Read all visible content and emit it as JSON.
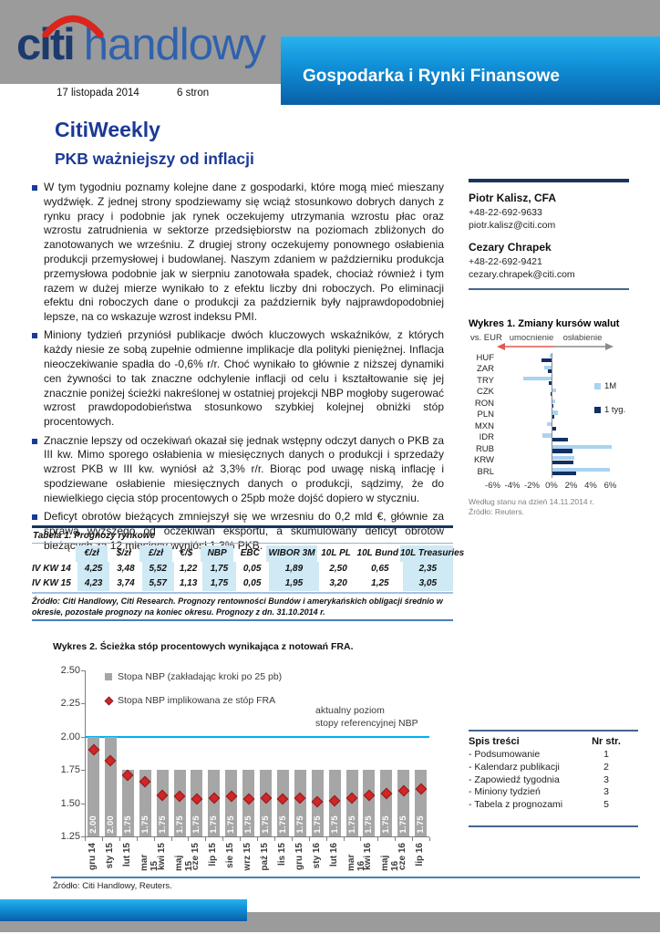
{
  "header": {
    "logo_citi": "citi",
    "logo_handlowy": "handlowy",
    "banner": "Gospodarka i Rynki Finansowe",
    "date": "17 listopada 2014",
    "pages": "6 stron"
  },
  "title": "CitiWeekly",
  "subtitle": "PKB ważniejszy od inflacji",
  "bullets": [
    "W tym tygodniu poznamy kolejne dane z gospodarki, które mogą mieć mieszany wydźwięk. Z jednej strony spodziewamy się wciąż stosunkowo dobrych danych z rynku pracy i podobnie jak rynek oczekujemy utrzymania wzrostu płac oraz wzrostu zatrudnienia w sektorze przedsiębiorstw na poziomach zbliżonych do zanotowanych we wrześniu. Z drugiej strony oczekujemy ponownego osłabienia produkcji przemysłowej i budowlanej. Naszym zdaniem w październiku produkcja przemysłowa podobnie jak w sierpniu zanotowała spadek, chociaż również i tym razem w dużej mierze wynikało to z efektu liczby dni roboczych. Po eliminacji efektu dni roboczych dane o produkcji za październik były najprawdopodobniej lepsze, na co wskazuje wzrost indeksu PMI.",
    "Miniony tydzień przyniósł publikacje dwóch kluczowych wskaźników, z których każdy niesie ze sobą zupełnie odmienne implikacje dla polityki pieniężnej. Inflacja nieoczekiwanie spadła do -0,6% r/r. Choć wynikało to głównie z niższej dynamiki cen żywności to tak znaczne odchylenie inflacji od celu i kształtowanie się jej znacznie poniżej ścieżki nakreślonej w ostatniej projekcji NBP mogłoby sugerować wzrost prawdopodobieństwa stosunkowo szybkiej kolejnej obniżki stóp procentowych.",
    "Znacznie lepszy od oczekiwań okazał się jednak wstępny odczyt danych o PKB za III kw. Mimo sporego osłabienia w miesięcznych danych o produkcji i sprzedaży wzrost PKB w III kw. wyniósł aż 3,3% r/r. Biorąc pod uwagę niską inflację i spodziewane osłabienie miesięcznych danych o produkcji, sądzimy, że do niewielkiego cięcia stóp procentowych o 25pb może dojść dopiero w styczniu.",
    "Deficyt obrotów bieżących zmniejszył się we wrzesniu do 0,2 mld €, głównie za sprawą wyższego od oczekiwań eksportu, a skumulowany deficyt obrotów bieżących za 12 miesięcy wyniósł 1,3% PKB."
  ],
  "contacts": [
    {
      "name": "Piotr Kalisz, CFA",
      "phone": "+48-22-692-9633",
      "email": "piotr.kalisz@citi.com"
    },
    {
      "name": "Cezary Chrapek",
      "phone": "+48-22-692-9421",
      "email": "cezary.chrapek@citi.com"
    }
  ],
  "table1": {
    "title": "Tabela 1. Prognozy rynkowe",
    "columns": [
      "€/zł",
      "$/zł",
      "£/zł",
      "€/$",
      "NBP",
      "EBC",
      "WIBOR 3M",
      "10L PL",
      "10L Bund",
      "10L Treasuries"
    ],
    "shaded_columns": [
      0,
      2,
      4,
      6,
      9
    ],
    "rows": [
      {
        "label": "IV KW 14",
        "values": [
          "4,25",
          "3,48",
          "5,52",
          "1,22",
          "1,75",
          "0,05",
          "1,89",
          "2,50",
          "0,65",
          "2,35"
        ]
      },
      {
        "label": "IV KW 15",
        "values": [
          "4,23",
          "3,74",
          "5,57",
          "1,13",
          "1,75",
          "0,05",
          "1,95",
          "3,20",
          "1,25",
          "3,05"
        ]
      }
    ],
    "source": "Źródło: Citi Handlowy, Citi Research. Prognozy rentowności Bundów i amerykańskich obligacji średnio w okresie, pozostałe prognozy na koniec okresu. Prognozy z dn. 31.10.2014 r."
  },
  "chart_data": [
    {
      "type": "bar",
      "orientation": "horizontal",
      "title": "Wykres 1. Zmiany kursów walut",
      "vs_label": "vs. EUR",
      "left_label": "umocnienie",
      "right_label": "osłabienie",
      "categories": [
        "HUF",
        "ZAR",
        "TRY",
        "CZK",
        "RON",
        "PLN",
        "MXN",
        "IDR",
        "RUB",
        "KRW",
        "BRL"
      ],
      "series": [
        {
          "name": "1M",
          "color": "#a9d3f0",
          "values": [
            -0.2,
            -0.7,
            -2.9,
            0.4,
            0.3,
            0.6,
            -0.5,
            -0.9,
            6.0,
            2.2,
            5.9
          ]
        },
        {
          "name": "1 tyg.",
          "color": "#122f66",
          "values": [
            -1.0,
            -0.4,
            -0.3,
            -0.1,
            0.05,
            0.2,
            0.4,
            1.6,
            2.0,
            2.1,
            2.4
          ]
        }
      ],
      "xlim": [
        -6,
        6
      ],
      "xticks": [
        "-6%",
        "-4%",
        "-2%",
        "0%",
        "2%",
        "4%",
        "6%"
      ],
      "legend_position": "right",
      "grid": false,
      "footnotes": [
        "Według stanu na dzień 14.11.2014 r.",
        "Źródło: Reuters."
      ]
    },
    {
      "type": "bar",
      "title": "Wykres 2. Ścieżka stóp procentowych wynikająca z notowań FRA.",
      "categories": [
        "gru 14",
        "sty 15",
        "lut 15",
        "mar 15",
        "kwi 15",
        "maj 15",
        "cze 15",
        "lip 15",
        "sie 15",
        "wrz 15",
        "paź 15",
        "lis 15",
        "gru 15",
        "sty 16",
        "lut 16",
        "mar 16",
        "kwi 16",
        "maj 16",
        "cze 16",
        "lip 16"
      ],
      "series": [
        {
          "name": "Stopa NBP (zakładając kroki po 25 pb)",
          "type": "bar",
          "color": "#a6a6a6",
          "values": [
            2.0,
            2.0,
            1.75,
            1.75,
            1.75,
            1.75,
            1.75,
            1.75,
            1.75,
            1.75,
            1.75,
            1.75,
            1.75,
            1.75,
            1.75,
            1.75,
            1.75,
            1.75,
            1.75,
            1.75
          ]
        },
        {
          "name": "Stopa NBP implikowana ze stóp FRA",
          "type": "scatter",
          "color": "#d12626",
          "values": [
            1.9,
            1.82,
            1.71,
            1.66,
            1.56,
            1.55,
            1.53,
            1.54,
            1.55,
            1.53,
            1.54,
            1.53,
            1.54,
            1.51,
            1.52,
            1.54,
            1.56,
            1.57,
            1.59,
            1.61
          ]
        }
      ],
      "reference_line": {
        "value": 2.0,
        "color": "#00b0f0",
        "label": "aktualny poziom stopy referencyjnej NBP"
      },
      "annotation": [
        "aktualny poziom",
        "stopy referencyjnej NBP"
      ],
      "ylim": [
        1.25,
        2.5
      ],
      "yticks": [
        "2.50",
        "2.25",
        "2.00",
        "1.75",
        "1.50",
        "1.25"
      ],
      "grid": false,
      "legend_position": "top-left",
      "source": "Źródło: Citi Handlowy, Reuters."
    }
  ],
  "toc": {
    "title": "Spis treści",
    "col_header": "Nr str.",
    "items": [
      {
        "label": "- Podsumowanie",
        "page": "1"
      },
      {
        "label": "- Kalendarz publikacji",
        "page": "2"
      },
      {
        "label": "- Zapowiedź tygodnia",
        "page": "3"
      },
      {
        "label": "- Miniony tydzień",
        "page": "3"
      },
      {
        "label": "- Tabela z prognozami",
        "page": "5"
      }
    ]
  },
  "colors": {
    "citi_navy": "#1b3a96",
    "rule_navy": "#17365d",
    "banner_top": "#29b2ee",
    "banner_bottom": "#0a5fa8",
    "series_light_blue": "#a9d3f0",
    "series_dark_navy": "#122f66",
    "bar_gray": "#a6a6a6",
    "diamond_red": "#d12626",
    "ref_line_blue": "#00b0f0",
    "table_shade": "#cfe9f5",
    "header_gray": "#9b9b9b"
  }
}
